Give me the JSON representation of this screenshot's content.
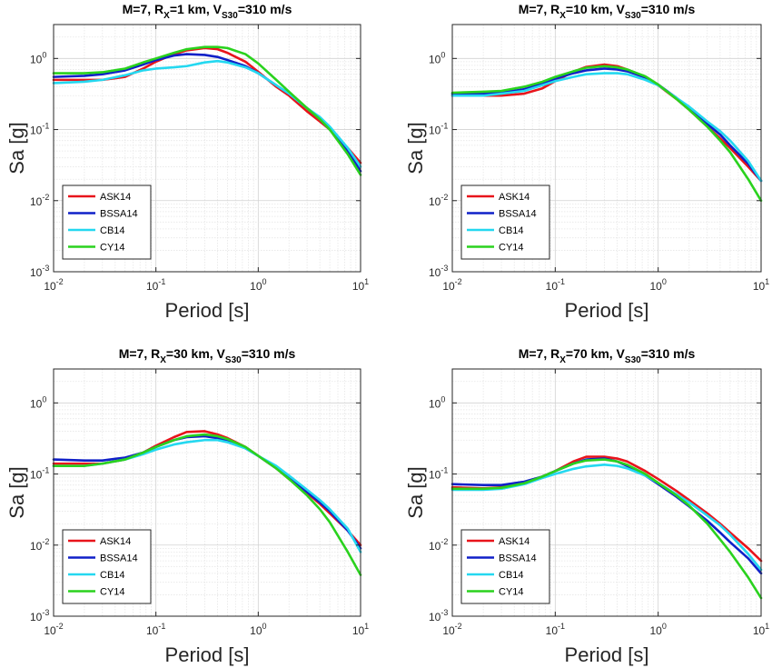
{
  "figure": {
    "panels": [
      {
        "title_parts": [
          "M=7, R",
          "X",
          "=1 km, V",
          "S30",
          "=310 m/s"
        ]
      },
      {
        "title_parts": [
          "M=7, R",
          "X",
          "=10 km, V",
          "S30",
          "=310 m/s"
        ]
      },
      {
        "title_parts": [
          "M=7, R",
          "X",
          "=30 km, V",
          "S30",
          "=310 m/s"
        ]
      },
      {
        "title_parts": [
          "M=7, R",
          "X",
          "=70 km, V",
          "S30",
          "=310 m/s"
        ]
      }
    ]
  },
  "chart_data": [
    {
      "type": "line",
      "title": "M=7, RX=1 km, VS30=310 m/s",
      "xlabel": "Period [s]",
      "ylabel": "Sa [g]",
      "xscale": "log",
      "yscale": "log",
      "xlim": [
        0.01,
        10
      ],
      "ylim": [
        0.001,
        3
      ],
      "xticks": [
        {
          "base": "10",
          "exp": "-2"
        },
        {
          "base": "10",
          "exp": "-1"
        },
        {
          "base": "10",
          "exp": "0"
        },
        {
          "base": "10",
          "exp": "1"
        }
      ],
      "yticks": [
        {
          "base": "10",
          "exp": "-3"
        },
        {
          "base": "10",
          "exp": "-2"
        },
        {
          "base": "10",
          "exp": "-1"
        },
        {
          "base": "10",
          "exp": "0"
        }
      ],
      "grid": true,
      "legend_position": "bottom-left",
      "series": [
        {
          "name": "ASK14",
          "color": "#e8141b",
          "x": [
            0.01,
            0.02,
            0.03,
            0.05,
            0.075,
            0.1,
            0.15,
            0.2,
            0.3,
            0.4,
            0.5,
            0.75,
            1,
            1.5,
            2,
            3,
            4,
            5,
            7.5,
            10
          ],
          "y": [
            0.5,
            0.5,
            0.5,
            0.55,
            0.72,
            0.9,
            1.15,
            1.3,
            1.4,
            1.35,
            1.2,
            0.9,
            0.65,
            0.4,
            0.3,
            0.18,
            0.13,
            0.1,
            0.055,
            0.034
          ]
        },
        {
          "name": "BSSA14",
          "color": "#1020c8",
          "x": [
            0.01,
            0.02,
            0.03,
            0.05,
            0.075,
            0.1,
            0.15,
            0.2,
            0.3,
            0.4,
            0.5,
            0.75,
            1,
            1.5,
            2,
            3,
            4,
            5,
            7.5,
            10
          ],
          "y": [
            0.55,
            0.57,
            0.6,
            0.68,
            0.82,
            0.95,
            1.1,
            1.15,
            1.12,
            1.05,
            0.95,
            0.78,
            0.62,
            0.42,
            0.32,
            0.2,
            0.14,
            0.1,
            0.05,
            0.026
          ]
        },
        {
          "name": "CB14",
          "color": "#24d8f0",
          "x": [
            0.01,
            0.02,
            0.03,
            0.05,
            0.075,
            0.1,
            0.15,
            0.2,
            0.3,
            0.4,
            0.5,
            0.75,
            1,
            1.5,
            2,
            3,
            4,
            5,
            7.5,
            10
          ],
          "y": [
            0.45,
            0.47,
            0.5,
            0.58,
            0.68,
            0.72,
            0.75,
            0.78,
            0.88,
            0.92,
            0.88,
            0.75,
            0.62,
            0.42,
            0.32,
            0.2,
            0.15,
            0.11,
            0.055,
            0.03
          ]
        },
        {
          "name": "CY14",
          "color": "#2ad21e",
          "x": [
            0.01,
            0.02,
            0.03,
            0.05,
            0.075,
            0.1,
            0.15,
            0.2,
            0.3,
            0.4,
            0.5,
            0.75,
            1,
            1.5,
            2,
            3,
            4,
            5,
            7.5,
            10
          ],
          "y": [
            0.62,
            0.62,
            0.64,
            0.72,
            0.88,
            1.0,
            1.2,
            1.35,
            1.45,
            1.45,
            1.4,
            1.15,
            0.85,
            0.5,
            0.34,
            0.2,
            0.14,
            0.1,
            0.045,
            0.023
          ]
        }
      ]
    },
    {
      "type": "line",
      "title": "M=7, RX=10 km, VS30=310 m/s",
      "xlabel": "Period [s]",
      "ylabel": "Sa [g]",
      "xscale": "log",
      "yscale": "log",
      "xlim": [
        0.01,
        10
      ],
      "ylim": [
        0.001,
        3
      ],
      "xticks": [
        {
          "base": "10",
          "exp": "-2"
        },
        {
          "base": "10",
          "exp": "-1"
        },
        {
          "base": "10",
          "exp": "0"
        },
        {
          "base": "10",
          "exp": "1"
        }
      ],
      "yticks": [
        {
          "base": "10",
          "exp": "-3"
        },
        {
          "base": "10",
          "exp": "-2"
        },
        {
          "base": "10",
          "exp": "-1"
        },
        {
          "base": "10",
          "exp": "0"
        }
      ],
      "grid": true,
      "legend_position": "bottom-left",
      "series": [
        {
          "name": "ASK14",
          "color": "#e8141b",
          "x": [
            0.01,
            0.02,
            0.03,
            0.05,
            0.075,
            0.1,
            0.15,
            0.2,
            0.3,
            0.4,
            0.5,
            0.75,
            1,
            1.5,
            2,
            3,
            4,
            5,
            7.5,
            10
          ],
          "y": [
            0.3,
            0.3,
            0.3,
            0.32,
            0.38,
            0.48,
            0.65,
            0.76,
            0.82,
            0.78,
            0.7,
            0.55,
            0.42,
            0.27,
            0.19,
            0.11,
            0.075,
            0.055,
            0.03,
            0.019
          ]
        },
        {
          "name": "BSSA14",
          "color": "#1020c8",
          "x": [
            0.01,
            0.02,
            0.03,
            0.05,
            0.075,
            0.1,
            0.15,
            0.2,
            0.3,
            0.4,
            0.5,
            0.75,
            1,
            1.5,
            2,
            3,
            4,
            5,
            7.5,
            10
          ],
          "y": [
            0.32,
            0.32,
            0.33,
            0.37,
            0.44,
            0.52,
            0.62,
            0.68,
            0.72,
            0.7,
            0.66,
            0.54,
            0.43,
            0.28,
            0.2,
            0.12,
            0.085,
            0.06,
            0.033,
            0.019
          ]
        },
        {
          "name": "CB14",
          "color": "#24d8f0",
          "x": [
            0.01,
            0.02,
            0.03,
            0.05,
            0.075,
            0.1,
            0.15,
            0.2,
            0.3,
            0.4,
            0.5,
            0.75,
            1,
            1.5,
            2,
            3,
            4,
            5,
            7.5,
            10
          ],
          "y": [
            0.3,
            0.3,
            0.32,
            0.35,
            0.42,
            0.48,
            0.55,
            0.6,
            0.62,
            0.62,
            0.6,
            0.5,
            0.42,
            0.28,
            0.21,
            0.13,
            0.095,
            0.07,
            0.036,
            0.019
          ]
        },
        {
          "name": "CY14",
          "color": "#2ad21e",
          "x": [
            0.01,
            0.02,
            0.03,
            0.05,
            0.075,
            0.1,
            0.15,
            0.2,
            0.3,
            0.4,
            0.5,
            0.75,
            1,
            1.5,
            2,
            3,
            4,
            5,
            7.5,
            10
          ],
          "y": [
            0.33,
            0.34,
            0.35,
            0.4,
            0.47,
            0.55,
            0.66,
            0.74,
            0.78,
            0.75,
            0.7,
            0.56,
            0.43,
            0.27,
            0.19,
            0.11,
            0.07,
            0.048,
            0.02,
            0.01
          ]
        }
      ]
    },
    {
      "type": "line",
      "title": "M=7, RX=30 km, VS30=310 m/s",
      "xlabel": "Period [s]",
      "ylabel": "Sa [g]",
      "xscale": "log",
      "yscale": "log",
      "xlim": [
        0.01,
        10
      ],
      "ylim": [
        0.001,
        3
      ],
      "xticks": [
        {
          "base": "10",
          "exp": "-2"
        },
        {
          "base": "10",
          "exp": "-1"
        },
        {
          "base": "10",
          "exp": "0"
        },
        {
          "base": "10",
          "exp": "1"
        }
      ],
      "yticks": [
        {
          "base": "10",
          "exp": "-3"
        },
        {
          "base": "10",
          "exp": "-2"
        },
        {
          "base": "10",
          "exp": "-1"
        },
        {
          "base": "10",
          "exp": "0"
        }
      ],
      "grid": true,
      "legend_position": "bottom-left",
      "series": [
        {
          "name": "ASK14",
          "color": "#e8141b",
          "x": [
            0.01,
            0.02,
            0.03,
            0.05,
            0.075,
            0.1,
            0.15,
            0.2,
            0.3,
            0.4,
            0.5,
            0.75,
            1,
            1.5,
            2,
            3,
            4,
            5,
            7.5,
            10
          ],
          "y": [
            0.14,
            0.14,
            0.14,
            0.16,
            0.2,
            0.25,
            0.33,
            0.39,
            0.4,
            0.36,
            0.32,
            0.24,
            0.18,
            0.12,
            0.085,
            0.054,
            0.038,
            0.028,
            0.016,
            0.01
          ]
        },
        {
          "name": "BSSA14",
          "color": "#1020c8",
          "x": [
            0.01,
            0.02,
            0.03,
            0.05,
            0.075,
            0.1,
            0.15,
            0.2,
            0.3,
            0.4,
            0.5,
            0.75,
            1,
            1.5,
            2,
            3,
            4,
            5,
            7.5,
            10
          ],
          "y": [
            0.16,
            0.155,
            0.155,
            0.17,
            0.2,
            0.24,
            0.3,
            0.33,
            0.34,
            0.32,
            0.3,
            0.23,
            0.18,
            0.12,
            0.088,
            0.056,
            0.04,
            0.03,
            0.016,
            0.009
          ]
        },
        {
          "name": "CB14",
          "color": "#24d8f0",
          "x": [
            0.01,
            0.02,
            0.03,
            0.05,
            0.075,
            0.1,
            0.15,
            0.2,
            0.3,
            0.4,
            0.5,
            0.75,
            1,
            1.5,
            2,
            3,
            4,
            5,
            7.5,
            10
          ],
          "y": [
            0.13,
            0.13,
            0.14,
            0.16,
            0.19,
            0.22,
            0.26,
            0.28,
            0.3,
            0.3,
            0.28,
            0.23,
            0.18,
            0.13,
            0.095,
            0.06,
            0.043,
            0.032,
            0.017,
            0.008
          ]
        },
        {
          "name": "CY14",
          "color": "#2ad21e",
          "x": [
            0.01,
            0.02,
            0.03,
            0.05,
            0.075,
            0.1,
            0.15,
            0.2,
            0.3,
            0.4,
            0.5,
            0.75,
            1,
            1.5,
            2,
            3,
            4,
            5,
            7.5,
            10
          ],
          "y": [
            0.13,
            0.13,
            0.14,
            0.16,
            0.2,
            0.24,
            0.3,
            0.34,
            0.36,
            0.34,
            0.31,
            0.24,
            0.18,
            0.12,
            0.085,
            0.05,
            0.032,
            0.021,
            0.008,
            0.0038
          ]
        }
      ]
    },
    {
      "type": "line",
      "title": "M=7, RX=70 km, VS30=310 m/s",
      "xlabel": "Period [s]",
      "ylabel": "Sa [g]",
      "xscale": "log",
      "yscale": "log",
      "xlim": [
        0.01,
        10
      ],
      "ylim": [
        0.001,
        3
      ],
      "xticks": [
        {
          "base": "10",
          "exp": "-2"
        },
        {
          "base": "10",
          "exp": "-1"
        },
        {
          "base": "10",
          "exp": "0"
        },
        {
          "base": "10",
          "exp": "1"
        }
      ],
      "yticks": [
        {
          "base": "10",
          "exp": "-3"
        },
        {
          "base": "10",
          "exp": "-2"
        },
        {
          "base": "10",
          "exp": "-1"
        },
        {
          "base": "10",
          "exp": "0"
        }
      ],
      "grid": true,
      "legend_position": "bottom-left",
      "series": [
        {
          "name": "ASK14",
          "color": "#e8141b",
          "x": [
            0.01,
            0.02,
            0.03,
            0.05,
            0.075,
            0.1,
            0.15,
            0.2,
            0.3,
            0.4,
            0.5,
            0.75,
            1,
            1.5,
            2,
            3,
            4,
            5,
            7.5,
            10
          ],
          "y": [
            0.065,
            0.063,
            0.065,
            0.075,
            0.092,
            0.11,
            0.15,
            0.175,
            0.175,
            0.165,
            0.15,
            0.11,
            0.085,
            0.058,
            0.043,
            0.028,
            0.02,
            0.015,
            0.009,
            0.006
          ]
        },
        {
          "name": "BSSA14",
          "color": "#1020c8",
          "x": [
            0.01,
            0.02,
            0.03,
            0.05,
            0.075,
            0.1,
            0.15,
            0.2,
            0.3,
            0.4,
            0.5,
            0.75,
            1,
            1.5,
            2,
            3,
            4,
            5,
            7.5,
            10
          ],
          "y": [
            0.072,
            0.07,
            0.07,
            0.078,
            0.092,
            0.11,
            0.14,
            0.16,
            0.165,
            0.15,
            0.13,
            0.095,
            0.072,
            0.048,
            0.035,
            0.022,
            0.015,
            0.011,
            0.0065,
            0.004
          ]
        },
        {
          "name": "CB14",
          "color": "#24d8f0",
          "x": [
            0.01,
            0.02,
            0.03,
            0.05,
            0.075,
            0.1,
            0.15,
            0.2,
            0.3,
            0.4,
            0.5,
            0.75,
            1,
            1.5,
            2,
            3,
            4,
            5,
            7.5,
            10
          ],
          "y": [
            0.06,
            0.06,
            0.062,
            0.072,
            0.088,
            0.1,
            0.118,
            0.128,
            0.135,
            0.13,
            0.12,
            0.095,
            0.075,
            0.052,
            0.04,
            0.026,
            0.019,
            0.014,
            0.0075,
            0.0045
          ]
        },
        {
          "name": "CY14",
          "color": "#2ad21e",
          "x": [
            0.01,
            0.02,
            0.03,
            0.05,
            0.075,
            0.1,
            0.15,
            0.2,
            0.3,
            0.4,
            0.5,
            0.75,
            1,
            1.5,
            2,
            3,
            4,
            5,
            7.5,
            10
          ],
          "y": [
            0.062,
            0.062,
            0.064,
            0.074,
            0.092,
            0.11,
            0.14,
            0.155,
            0.16,
            0.15,
            0.135,
            0.1,
            0.075,
            0.05,
            0.036,
            0.02,
            0.012,
            0.008,
            0.0035,
            0.0018
          ]
        }
      ]
    }
  ]
}
